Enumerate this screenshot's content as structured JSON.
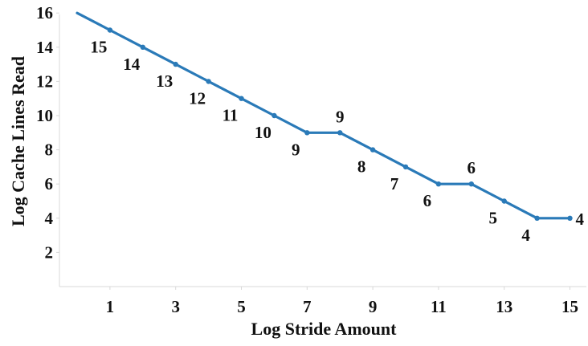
{
  "chart_data": {
    "type": "line",
    "title": "",
    "xlabel": "Log Stride Amount",
    "ylabel": "Log Cache Lines Read",
    "xlim": [
      -0.5,
      15.5
    ],
    "ylim": [
      0,
      16
    ],
    "x_ticks": [
      1,
      3,
      5,
      7,
      9,
      11,
      13,
      15
    ],
    "y_ticks": [
      2,
      4,
      6,
      8,
      10,
      12,
      14,
      16
    ],
    "grid": false,
    "legend": "none",
    "series": [
      {
        "color": "#2a7ab8",
        "x": [
          0,
          1,
          2,
          3,
          4,
          5,
          6,
          7,
          8,
          9,
          10,
          11,
          12,
          13,
          14,
          15
        ],
        "y": [
          16,
          15,
          14,
          13,
          12,
          11,
          10,
          9,
          9,
          8,
          7,
          6,
          6,
          5,
          4,
          4
        ],
        "point_labels": [
          "",
          "15",
          "14",
          "13",
          "12",
          "11",
          "10",
          "9",
          "9",
          "8",
          "7",
          "6",
          "6",
          "5",
          "4",
          "4"
        ],
        "label_placement": [
          "",
          "below",
          "below",
          "below",
          "below",
          "below",
          "below",
          "below",
          "above",
          "below",
          "below",
          "below",
          "above",
          "below",
          "below",
          "right"
        ]
      }
    ]
  }
}
